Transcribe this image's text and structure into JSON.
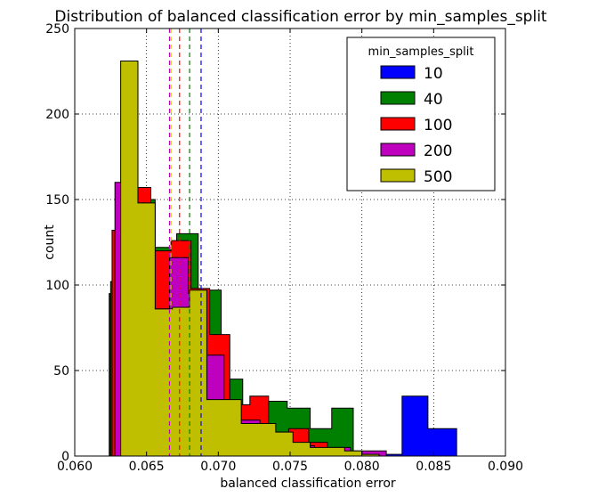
{
  "chart_data": {
    "type": "histogram",
    "title": "Distribution of balanced classification error by min_samples_split",
    "xlabel": "balanced classification error",
    "ylabel": "count",
    "xlim": [
      0.06,
      0.09
    ],
    "ylim": [
      0,
      250
    ],
    "xticks": [
      "0.060",
      "0.065",
      "0.070",
      "0.075",
      "0.080",
      "0.085",
      "0.090"
    ],
    "xtick_values": [
      0.06,
      0.065,
      0.07,
      0.075,
      0.08,
      0.085,
      0.09
    ],
    "yticks": [
      "0",
      "50",
      "100",
      "150",
      "200",
      "250"
    ],
    "ytick_values": [
      0,
      50,
      100,
      150,
      200,
      250
    ],
    "grid": true,
    "legend": {
      "title": "min_samples_split",
      "position": "top-right"
    },
    "series": [
      {
        "name": "10",
        "color": "#0000ff",
        "bins": [
          [
            0.0624,
            0.0636,
            95
          ],
          [
            0.0636,
            0.0648,
            25
          ],
          [
            0.0648,
            0.066,
            20
          ],
          [
            0.066,
            0.0672,
            15
          ],
          [
            0.0672,
            0.0684,
            10
          ],
          [
            0.0684,
            0.0696,
            8
          ],
          [
            0.0696,
            0.0708,
            6
          ],
          [
            0.0708,
            0.072,
            5
          ],
          [
            0.072,
            0.0732,
            4
          ],
          [
            0.0732,
            0.0744,
            3
          ],
          [
            0.0744,
            0.0756,
            3
          ],
          [
            0.0756,
            0.0768,
            2
          ],
          [
            0.0768,
            0.078,
            2
          ],
          [
            0.078,
            0.0792,
            2
          ],
          [
            0.0792,
            0.0804,
            1
          ],
          [
            0.0804,
            0.0816,
            1
          ],
          [
            0.0816,
            0.0828,
            1
          ],
          [
            0.0828,
            0.0846,
            35
          ],
          [
            0.0846,
            0.0866,
            16
          ]
        ],
        "mean": 0.0688
      },
      {
        "name": "40",
        "color": "#008000",
        "bins": [
          [
            0.0625,
            0.064,
            102
          ],
          [
            0.064,
            0.0656,
            150
          ],
          [
            0.0656,
            0.0671,
            122
          ],
          [
            0.0671,
            0.0686,
            130
          ],
          [
            0.0686,
            0.0702,
            97
          ],
          [
            0.0702,
            0.0717,
            45
          ],
          [
            0.0717,
            0.0733,
            25
          ],
          [
            0.0733,
            0.0748,
            32
          ],
          [
            0.0748,
            0.0764,
            28
          ],
          [
            0.0764,
            0.0779,
            16
          ],
          [
            0.0779,
            0.0794,
            28
          ]
        ],
        "mean": 0.068
      },
      {
        "name": "100",
        "color": "#ff0000",
        "bins": [
          [
            0.0626,
            0.064,
            132
          ],
          [
            0.064,
            0.0653,
            157
          ],
          [
            0.0653,
            0.0667,
            120
          ],
          [
            0.0667,
            0.0681,
            126
          ],
          [
            0.0681,
            0.0694,
            98
          ],
          [
            0.0694,
            0.0708,
            71
          ],
          [
            0.0708,
            0.0722,
            30
          ],
          [
            0.0722,
            0.0735,
            35
          ],
          [
            0.0735,
            0.0749,
            14
          ],
          [
            0.0749,
            0.0763,
            16
          ],
          [
            0.0763,
            0.0776,
            8
          ]
        ],
        "mean": 0.0673
      },
      {
        "name": "200",
        "color": "#bf00bf",
        "bins": [
          [
            0.0628,
            0.0641,
            160
          ],
          [
            0.0641,
            0.0653,
            148
          ],
          [
            0.0653,
            0.0666,
            86
          ],
          [
            0.0666,
            0.0679,
            116
          ],
          [
            0.0679,
            0.0691,
            95
          ],
          [
            0.0691,
            0.0704,
            59
          ],
          [
            0.0704,
            0.0716,
            30
          ],
          [
            0.0716,
            0.0729,
            21
          ],
          [
            0.0729,
            0.0741,
            10
          ],
          [
            0.0741,
            0.0754,
            7
          ],
          [
            0.0754,
            0.0767,
            6
          ],
          [
            0.0767,
            0.0779,
            4
          ],
          [
            0.0779,
            0.0792,
            5
          ],
          [
            0.0792,
            0.0804,
            3
          ],
          [
            0.0804,
            0.0817,
            3
          ]
        ],
        "mean": 0.0666
      },
      {
        "name": "500",
        "color": "#bfbf00",
        "bins": [
          [
            0.0632,
            0.0644,
            231
          ],
          [
            0.0644,
            0.0656,
            148
          ],
          [
            0.0656,
            0.0668,
            86
          ],
          [
            0.0668,
            0.068,
            87
          ],
          [
            0.068,
            0.0692,
            97
          ],
          [
            0.0692,
            0.0704,
            33
          ],
          [
            0.0704,
            0.0716,
            33
          ],
          [
            0.0716,
            0.0728,
            19
          ],
          [
            0.0728,
            0.074,
            19
          ],
          [
            0.074,
            0.0752,
            14
          ],
          [
            0.0752,
            0.0764,
            8
          ],
          [
            0.0764,
            0.0776,
            5
          ],
          [
            0.0776,
            0.0788,
            5
          ],
          [
            0.0788,
            0.08,
            3
          ],
          [
            0.08,
            0.0812,
            1
          ]
        ],
        "mean": 0.0667
      }
    ]
  }
}
